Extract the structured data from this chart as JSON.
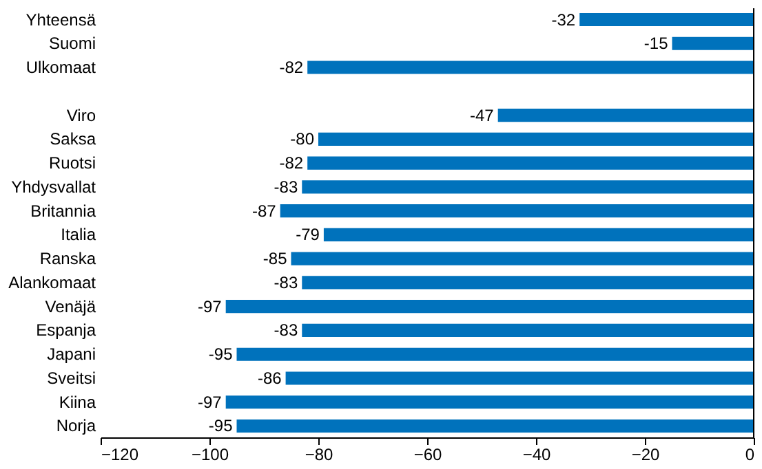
{
  "chart_data": {
    "type": "bar",
    "orientation": "horizontal",
    "categories": [
      "Yhteensä",
      "Suomi",
      "Ulkomaat",
      null,
      "Viro",
      "Saksa",
      "Ruotsi",
      "Yhdysvallat",
      "Britannia",
      "Italia",
      "Ranska",
      "Alankomaat",
      "Venäjä",
      "Espanja",
      "Japani",
      "Sveitsi",
      "Kiina",
      "Norja"
    ],
    "values": [
      -32,
      -15,
      -82,
      null,
      -47,
      -80,
      -82,
      -83,
      -87,
      -79,
      -85,
      -83,
      -97,
      -83,
      -95,
      -86,
      -97,
      -95
    ],
    "color": "#0072bc",
    "xlim": [
      -120,
      0
    ],
    "xticks": [
      -120,
      -100,
      -80,
      -60,
      -40,
      -20,
      0
    ],
    "data_labels": true,
    "grid": false
  }
}
